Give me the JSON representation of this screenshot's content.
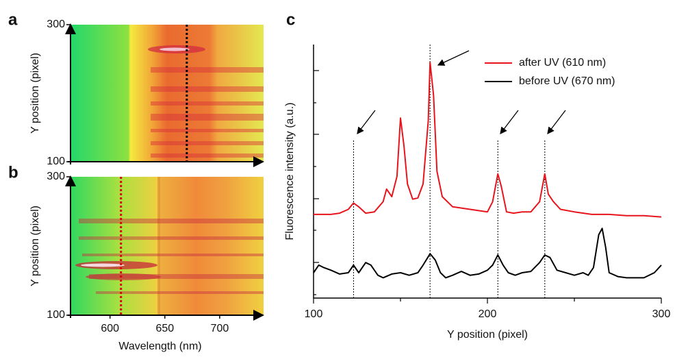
{
  "chart_data": [
    {
      "type": "image",
      "panel": "a",
      "ylabel": "Y position (pixel)",
      "xlim": [
        564,
        740
      ],
      "ylim": [
        100,
        300
      ],
      "yticks": [
        100,
        300
      ],
      "marker_line": 670,
      "marker_color": "#000000"
    },
    {
      "type": "image",
      "panel": "b",
      "ylabel": "Y position (pixel)",
      "xlabel": "Wavelength (nm)",
      "xlim": [
        564,
        740
      ],
      "xticks": [
        600,
        650,
        700
      ],
      "ylim": [
        100,
        300
      ],
      "yticks": [
        100,
        300
      ],
      "marker_line": 610,
      "marker_color": "#e00000"
    },
    {
      "type": "line",
      "panel": "c",
      "xlabel": "Y position (pixel)",
      "ylabel": "Fluorescence intensity (a.u.)",
      "xlim": [
        100,
        300
      ],
      "xticks": [
        100,
        200,
        300
      ],
      "ylim": [
        0,
        100
      ],
      "guide_lines": [
        123,
        167,
        206,
        233
      ],
      "series": [
        {
          "name": "after UV (610 nm)",
          "color": "#e8141c",
          "x": [
            100,
            110,
            115,
            120,
            123,
            126,
            130,
            135,
            140,
            142,
            145,
            148,
            150,
            152,
            154,
            157,
            160,
            163,
            166,
            167,
            169,
            171,
            174,
            180,
            190,
            200,
            203,
            206,
            208,
            211,
            215,
            220,
            225,
            230,
            233,
            235,
            238,
            242,
            250,
            260,
            270,
            280,
            290,
            300
          ],
          "values": [
            33,
            33,
            33.5,
            35,
            37.5,
            36,
            33.5,
            34,
            38,
            43,
            40,
            48,
            71,
            60,
            45,
            39,
            39.5,
            45,
            70,
            93,
            80,
            50,
            40,
            36,
            35,
            34,
            38,
            49,
            44,
            34,
            33.5,
            34,
            34,
            38,
            49,
            41,
            38,
            35,
            34,
            33,
            33,
            32.5,
            32.5,
            32
          ]
        },
        {
          "name": "before UV (670 nm)",
          "color": "#000000",
          "x": [
            100,
            103,
            106,
            110,
            115,
            120,
            123,
            126,
            130,
            133,
            137,
            140,
            145,
            150,
            155,
            160,
            163,
            167,
            170,
            173,
            176,
            180,
            185,
            190,
            195,
            200,
            203,
            206,
            209,
            212,
            216,
            220,
            225,
            230,
            233,
            236,
            240,
            245,
            250,
            255,
            258,
            261,
            264,
            266,
            268,
            270,
            275,
            280,
            290,
            296,
            300
          ],
          "values": [
            10,
            13,
            12,
            11,
            9.5,
            10,
            13,
            10,
            14,
            13,
            9,
            8,
            9.5,
            10,
            9,
            10,
            13,
            17.5,
            15,
            10,
            8,
            9,
            10.5,
            9,
            9.5,
            11,
            13,
            17,
            13,
            10,
            9,
            10,
            10.5,
            14,
            17,
            16,
            11,
            10,
            9,
            10,
            9,
            12,
            25,
            27.5,
            20,
            10,
            8.5,
            8,
            8,
            10,
            13
          ]
        }
      ]
    }
  ]
}
